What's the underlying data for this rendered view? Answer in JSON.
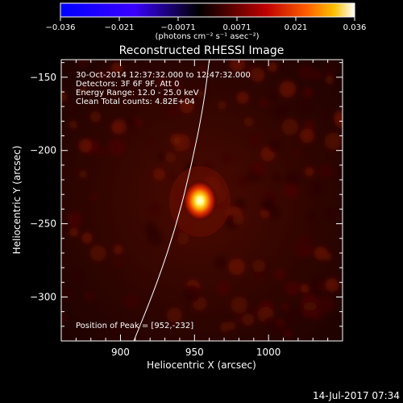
{
  "chart_data": {
    "type": "heatmap",
    "title": "Reconstructed RHESSI Image",
    "xlabel": "Heliocentric X (arcsec)",
    "ylabel": "Heliocentric Y (arcsec)",
    "xlim": [
      860,
      1050
    ],
    "ylim": [
      -330,
      -138
    ],
    "xticks": [
      900,
      950,
      1000
    ],
    "yticks": [
      -150,
      -200,
      -250,
      -300
    ],
    "colorbar": {
      "range": [
        -0.036,
        0.036
      ],
      "ticks": [
        "−0.036",
        "−0.021",
        "−0.0071",
        "0.0071",
        "0.021",
        "0.036"
      ],
      "unit_label": "(photons cm⁻² s⁻¹ asec⁻²)",
      "colormap": [
        "#0000ff",
        "#4000ff",
        "#000000",
        "#800000",
        "#ff4000",
        "#ffc000",
        "#ffffff"
      ]
    },
    "info_lines": [
      "30-Oct-2014 12:37:32.000 to 12:47:32.000",
      "Detectors: 3F 6F 9F, Att 0",
      "Energy Range: 12.0 - 25.0 keV",
      "Clean    Total counts: 4.82E+04"
    ],
    "peak": {
      "x": 952,
      "y": -232,
      "label": "Position of Peak = [952,-232]"
    },
    "limb_curve": [
      [
        909,
        -330
      ],
      [
        925,
        -290
      ],
      [
        938,
        -250
      ],
      [
        948,
        -210
      ],
      [
        956,
        -170
      ],
      [
        960,
        -138
      ]
    ],
    "timestamp": "14-Jul-2017 07:34"
  }
}
